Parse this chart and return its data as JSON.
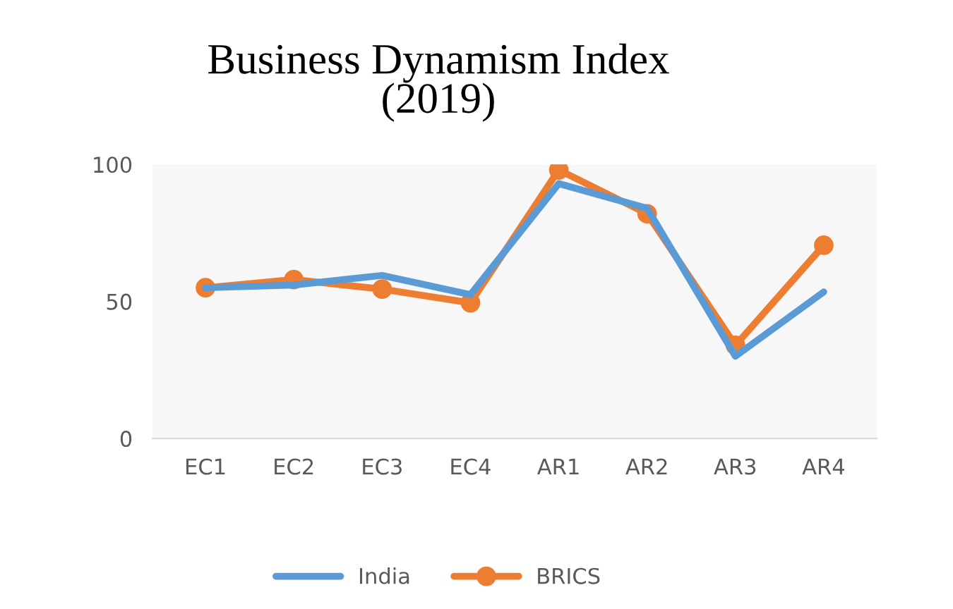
{
  "chart_data": {
    "type": "line",
    "title": "Business Dynamism Index\n(2019)",
    "categories": [
      "EC1",
      "EC2",
      "EC3",
      "EC4",
      "AR1",
      "AR2",
      "AR3",
      "AR4"
    ],
    "series": [
      {
        "name": "India",
        "color": "#5b9bd5",
        "values": [
          55,
          56,
          59.5,
          52.5,
          93,
          84,
          30,
          53.5
        ],
        "marker": "none"
      },
      {
        "name": "BRICS",
        "color": "#ed7d31",
        "values": [
          55,
          58,
          54.5,
          49.5,
          98,
          82,
          34,
          70.5
        ],
        "marker": "circle"
      }
    ],
    "ylim": [
      0,
      100
    ],
    "yticks": [
      0,
      50,
      100
    ],
    "grid": false,
    "legend": "bottom"
  }
}
